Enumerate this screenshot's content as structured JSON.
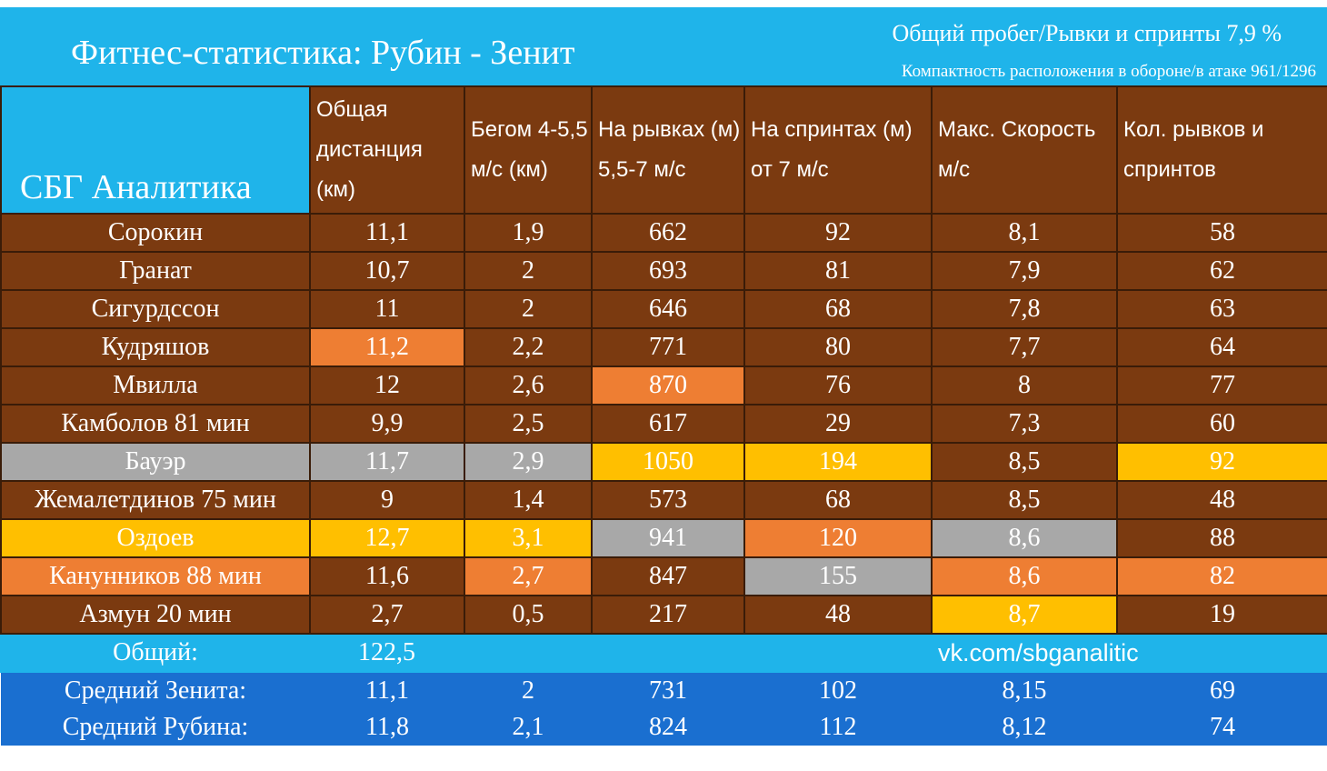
{
  "header": {
    "title": "Фитнес-статистика: Рубин - Зенит",
    "subtitle_1": "Общий пробег/Рывки и спринты 7,9 %",
    "subtitle_2": "Компактность расположения в обороне/в атаке 961/1296"
  },
  "brand": "СБГ Аналитика",
  "columns": [
    "Общая дистанция (км)",
    "Бегом 4-5,5 м/с (км)",
    "На рывках (м) 5,5-7 м/с",
    "На спринтах (м) от 7 м/с",
    "Макс. Скорость м/с",
    "Кол. рывков и спринтов"
  ],
  "rows": [
    {
      "name": "Сорокин",
      "values": [
        "11,1",
        "1,9",
        "662",
        "92",
        "8,1",
        "58"
      ]
    },
    {
      "name": "Гранат",
      "values": [
        "10,7",
        "2",
        "693",
        "81",
        "7,9",
        "62"
      ]
    },
    {
      "name": "Сигурдссон",
      "values": [
        "11",
        "2",
        "646",
        "68",
        "7,8",
        "63"
      ]
    },
    {
      "name": "Кудряшов",
      "values": [
        "11,2",
        "2,2",
        "771",
        "80",
        "7,7",
        "64"
      ]
    },
    {
      "name": "Мвилла",
      "values": [
        "12",
        "2,6",
        "870",
        "76",
        "8",
        "77"
      ]
    },
    {
      "name": "Камболов 81 мин",
      "values": [
        "9,9",
        "2,5",
        "617",
        "29",
        "7,3",
        "60"
      ]
    },
    {
      "name": "Бауэр",
      "values": [
        "11,7",
        "2,9",
        "1050",
        "194",
        "8,5",
        "92"
      ]
    },
    {
      "name": "Жемалетдинов 75 мин",
      "values": [
        "9",
        "1,4",
        "573",
        "68",
        "8,5",
        "48"
      ]
    },
    {
      "name": "Оздоев",
      "values": [
        "12,7",
        "3,1",
        "941",
        "120",
        "8,6",
        "88"
      ]
    },
    {
      "name": "Канунников 88 мин",
      "values": [
        "11,6",
        "2,7",
        "847",
        "155",
        "8,6",
        "82"
      ]
    },
    {
      "name": "Азмун 20 мин",
      "values": [
        "2,7",
        "0,5",
        "217",
        "48",
        "8,7",
        "19"
      ]
    }
  ],
  "total": {
    "label": "Общий:",
    "value": "122,5",
    "link": "vk.com/sbganalitic"
  },
  "averages": [
    {
      "label": "Средний Зенита:",
      "values": [
        "11,1",
        "2",
        "731",
        "102",
        "8,15",
        "69"
      ]
    },
    {
      "label": "Средний Рубина:",
      "values": [
        "11,8",
        "2,1",
        "824",
        "112",
        "8,12",
        "74"
      ]
    }
  ],
  "colors": {
    "header_blue": "#1fb4ea",
    "cell_brown": "#7b3a10",
    "highlight_orange": "#ee7e33",
    "highlight_yellow": "#ffbf00",
    "highlight_gray": "#a8a8a8",
    "avg_blue": "#1a6fd0"
  }
}
